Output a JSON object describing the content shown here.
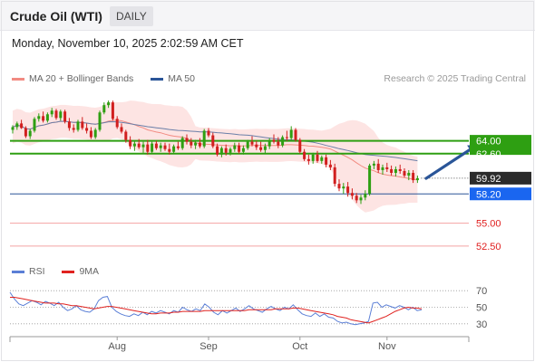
{
  "header": {
    "title": "Crude Oil (WTI)",
    "period": "DAILY"
  },
  "timestamp": "Monday, November 10, 2025 2:02:59 AM CET",
  "legend": {
    "items": [
      {
        "label": "MA 20 + Bollinger Bands",
        "color": "#f28b82"
      },
      {
        "label": "MA 50",
        "color": "#2a5598"
      }
    ],
    "credit": "Research © 2025 Trading Central"
  },
  "rsi_legend": {
    "items": [
      {
        "label": "RSI",
        "color": "#5b7fd6"
      },
      {
        "label": "9MA",
        "color": "#e0221f"
      }
    ]
  },
  "chart_data": [
    {
      "type": "candlestick",
      "ylim": [
        51.5,
        69.5
      ],
      "x_tick_labels": [
        {
          "label": "Aug",
          "index": 24
        },
        {
          "label": "Sep",
          "index": 45
        },
        {
          "label": "Oct",
          "index": 66
        },
        {
          "label": "Nov",
          "index": 86
        }
      ],
      "levels": [
        {
          "value": 64.0,
          "label": "64.00",
          "kind": "resistance",
          "color": "#2e9f12"
        },
        {
          "value": 62.6,
          "label": "62.60",
          "kind": "resistance",
          "color": "#2e9f12"
        },
        {
          "value": 59.92,
          "label": "59.92",
          "kind": "last",
          "color": "#2b2b2b"
        },
        {
          "value": 58.2,
          "label": "58.20",
          "kind": "pivot",
          "color": "#1a66f0"
        },
        {
          "value": 55.0,
          "label": "55.00",
          "kind": "support",
          "color": "#e02020"
        },
        {
          "value": 52.5,
          "label": "52.50",
          "kind": "support",
          "color": "#e02020"
        }
      ],
      "arrow": {
        "from_index": 95,
        "from_value": 59.9,
        "to_index": 107,
        "to_value": 63.6,
        "color": "#2a5598"
      },
      "ohlc": [
        [
          65.2,
          65.7,
          64.8,
          65.5
        ],
        [
          65.5,
          66.1,
          65.2,
          65.9
        ],
        [
          65.9,
          66.3,
          65.3,
          65.4
        ],
        [
          65.4,
          65.6,
          64.3,
          64.5
        ],
        [
          64.5,
          65.3,
          64.2,
          65.1
        ],
        [
          65.1,
          66.6,
          64.9,
          66.4
        ],
        [
          66.4,
          67.0,
          66.1,
          66.7
        ],
        [
          66.7,
          67.2,
          66.0,
          66.2
        ],
        [
          66.2,
          67.1,
          66.0,
          66.9
        ],
        [
          66.9,
          67.6,
          66.6,
          67.3
        ],
        [
          67.3,
          67.5,
          66.3,
          66.5
        ],
        [
          66.5,
          67.4,
          66.2,
          67.2
        ],
        [
          67.2,
          67.4,
          65.9,
          66.1
        ],
        [
          66.1,
          66.5,
          65.1,
          65.4
        ],
        [
          65.4,
          65.8,
          64.9,
          65.2
        ],
        [
          65.2,
          66.3,
          65.0,
          66.1
        ],
        [
          66.1,
          66.6,
          65.2,
          65.4
        ],
        [
          65.4,
          65.9,
          64.8,
          65.1
        ],
        [
          65.1,
          65.5,
          64.2,
          64.4
        ],
        [
          64.4,
          65.4,
          64.2,
          65.2
        ],
        [
          65.2,
          67.3,
          65.0,
          67.1
        ],
        [
          67.1,
          68.2,
          66.9,
          67.9
        ],
        [
          67.9,
          68.4,
          67.6,
          68.2
        ],
        [
          68.2,
          68.4,
          66.2,
          66.4
        ],
        [
          66.4,
          66.7,
          65.3,
          65.5
        ],
        [
          65.5,
          65.9,
          64.8,
          65.0
        ],
        [
          65.0,
          65.2,
          63.8,
          64.1
        ],
        [
          64.1,
          64.5,
          63.1,
          63.4
        ],
        [
          63.4,
          64.0,
          62.9,
          63.7
        ],
        [
          63.7,
          64.2,
          63.1,
          63.3
        ],
        [
          63.3,
          63.9,
          62.7,
          63.6
        ],
        [
          63.6,
          64.1,
          62.5,
          62.8
        ],
        [
          62.8,
          63.9,
          62.6,
          63.7
        ],
        [
          63.7,
          64.0,
          63.0,
          63.2
        ],
        [
          63.2,
          63.8,
          62.8,
          63.5
        ],
        [
          63.5,
          63.8,
          62.9,
          63.1
        ],
        [
          63.1,
          63.7,
          62.5,
          62.8
        ],
        [
          62.8,
          63.6,
          62.6,
          63.4
        ],
        [
          63.4,
          63.9,
          63.0,
          63.2
        ],
        [
          63.2,
          64.5,
          63.0,
          64.3
        ],
        [
          64.3,
          64.7,
          63.6,
          63.9
        ],
        [
          63.9,
          64.3,
          63.2,
          63.5
        ],
        [
          63.5,
          64.1,
          63.1,
          63.8
        ],
        [
          63.8,
          64.3,
          63.2,
          63.4
        ],
        [
          63.4,
          65.3,
          63.2,
          65.1
        ],
        [
          65.1,
          65.4,
          64.4,
          64.6
        ],
        [
          64.6,
          64.9,
          63.2,
          63.4
        ],
        [
          63.4,
          63.7,
          62.3,
          62.5
        ],
        [
          62.5,
          63.4,
          62.2,
          63.2
        ],
        [
          63.2,
          63.6,
          62.4,
          62.7
        ],
        [
          62.7,
          63.3,
          62.4,
          63.1
        ],
        [
          63.1,
          63.8,
          62.8,
          63.5
        ],
        [
          63.5,
          63.8,
          62.6,
          62.8
        ],
        [
          62.8,
          63.5,
          62.5,
          63.2
        ],
        [
          63.2,
          64.1,
          63.0,
          63.9
        ],
        [
          63.9,
          64.5,
          63.4,
          63.6
        ],
        [
          63.6,
          64.0,
          63.0,
          63.3
        ],
        [
          63.3,
          63.9,
          62.8,
          63.0
        ],
        [
          63.0,
          63.7,
          62.6,
          63.4
        ],
        [
          63.4,
          64.3,
          63.1,
          64.1
        ],
        [
          64.1,
          64.7,
          63.7,
          63.9
        ],
        [
          63.9,
          64.4,
          63.2,
          63.5
        ],
        [
          63.5,
          64.6,
          63.3,
          64.4
        ],
        [
          64.4,
          65.1,
          64.0,
          64.3
        ],
        [
          64.3,
          65.6,
          64.1,
          65.2
        ],
        [
          65.2,
          65.4,
          63.9,
          64.1
        ],
        [
          64.1,
          64.3,
          62.6,
          62.8
        ],
        [
          62.8,
          63.1,
          61.8,
          62.0
        ],
        [
          62.0,
          62.5,
          61.4,
          61.8
        ],
        [
          61.8,
          62.7,
          61.5,
          62.5
        ],
        [
          62.5,
          62.9,
          61.6,
          61.8
        ],
        [
          61.8,
          62.4,
          61.5,
          62.2
        ],
        [
          62.2,
          62.5,
          61.1,
          61.4
        ],
        [
          61.4,
          61.9,
          60.8,
          61.1
        ],
        [
          61.1,
          61.5,
          59.0,
          59.3
        ],
        [
          59.3,
          59.8,
          58.5,
          58.8
        ],
        [
          58.8,
          59.4,
          58.2,
          59.0
        ],
        [
          59.0,
          59.5,
          57.9,
          58.3
        ],
        [
          58.3,
          58.8,
          57.6,
          58.0
        ],
        [
          58.0,
          58.3,
          57.2,
          57.5
        ],
        [
          57.5,
          58.1,
          57.1,
          57.8
        ],
        [
          57.8,
          58.6,
          57.5,
          58.2
        ],
        [
          58.2,
          61.5,
          58.0,
          61.3
        ],
        [
          61.3,
          61.8,
          60.9,
          61.5
        ],
        [
          61.5,
          62.0,
          60.5,
          60.8
        ],
        [
          60.8,
          61.4,
          60.3,
          61.1
        ],
        [
          61.1,
          61.6,
          60.6,
          60.9
        ],
        [
          60.9,
          61.3,
          60.2,
          60.5
        ],
        [
          60.5,
          61.2,
          60.1,
          60.9
        ],
        [
          60.9,
          61.4,
          60.4,
          60.7
        ],
        [
          60.7,
          61.0,
          60.0,
          60.2
        ],
        [
          60.2,
          60.8,
          59.7,
          60.5
        ],
        [
          60.5,
          60.8,
          59.4,
          59.7
        ],
        [
          59.7,
          60.2,
          59.4,
          59.92
        ]
      ]
    },
    {
      "type": "line",
      "ylim": [
        20,
        80
      ],
      "y_tick_labels": [
        70,
        50,
        30
      ],
      "series": [
        {
          "name": "RSI",
          "color": "#5b7fd6",
          "values": [
            68,
            60,
            54,
            52,
            55,
            58,
            56,
            53,
            57,
            55,
            52,
            56,
            50,
            46,
            48,
            52,
            47,
            45,
            44,
            48,
            58,
            62,
            63,
            50,
            45,
            42,
            40,
            39,
            42,
            40,
            44,
            41,
            45,
            43,
            46,
            44,
            42,
            46,
            44,
            50,
            47,
            45,
            48,
            46,
            54,
            50,
            44,
            41,
            46,
            43,
            46,
            49,
            45,
            48,
            52,
            48,
            46,
            44,
            48,
            51,
            48,
            46,
            50,
            48,
            53,
            47,
            42,
            40,
            39,
            43,
            39,
            42,
            38,
            37,
            33,
            31,
            32,
            30,
            29,
            30,
            31,
            33,
            55,
            56,
            50,
            53,
            51,
            49,
            52,
            50,
            47,
            50,
            46,
            47
          ]
        },
        {
          "name": "9MA",
          "color": "#e0221f",
          "values": [
            62,
            62,
            61,
            60,
            59,
            58,
            57,
            56,
            55,
            55,
            55,
            54,
            54,
            53,
            52,
            52,
            51,
            50,
            49,
            48,
            49,
            50,
            51,
            51,
            50,
            49,
            48,
            47,
            46,
            45,
            44,
            43,
            42,
            42,
            43,
            43,
            43,
            44,
            44,
            45,
            45,
            45,
            45,
            45,
            46,
            46,
            46,
            46,
            46,
            46,
            46,
            46,
            46,
            46,
            47,
            47,
            47,
            47,
            47,
            47,
            48,
            48,
            48,
            48,
            49,
            49,
            48,
            47,
            46,
            45,
            44,
            43,
            42,
            41,
            39,
            38,
            37,
            35,
            34,
            33,
            32,
            31,
            33,
            35,
            37,
            39,
            42,
            45,
            47,
            49,
            50,
            49,
            49,
            48
          ]
        }
      ]
    }
  ]
}
